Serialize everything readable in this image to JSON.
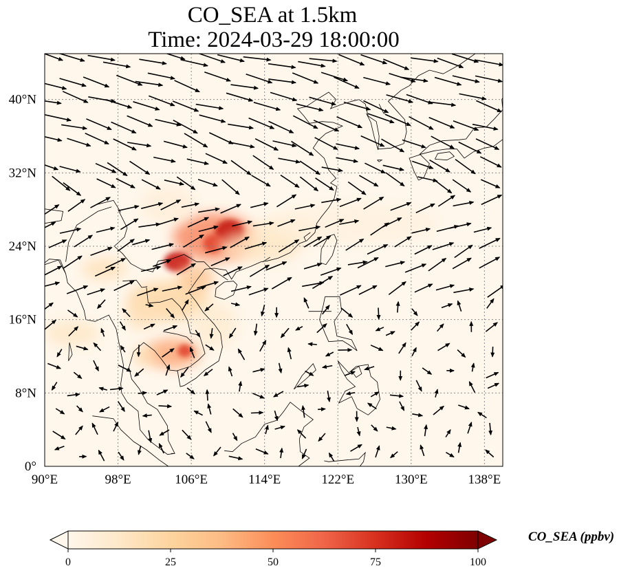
{
  "title": {
    "line1": "CO_SEA at 1.5km",
    "line2": "Time: 2024-03-29 18:00:00"
  },
  "map": {
    "variable": "CO_SEA",
    "level": "1.5km",
    "time": "2024-03-29 18:00:00",
    "lon_range": [
      90,
      140
    ],
    "lat_range": [
      0,
      45
    ],
    "lon_ticks": [
      {
        "value": 90,
        "label": "90°E"
      },
      {
        "value": 98,
        "label": "98°E"
      },
      {
        "value": 106,
        "label": "106°E"
      },
      {
        "value": 114,
        "label": "114°E"
      },
      {
        "value": 122,
        "label": "122°E"
      },
      {
        "value": 130,
        "label": "130°E"
      },
      {
        "value": 138,
        "label": "138°E"
      }
    ],
    "lat_ticks": [
      {
        "value": 0,
        "label": "0°"
      },
      {
        "value": 8,
        "label": "8°N"
      },
      {
        "value": 16,
        "label": "16°N"
      },
      {
        "value": 24,
        "label": "24°N"
      },
      {
        "value": 32,
        "label": "32°N"
      },
      {
        "value": 40,
        "label": "40°N"
      }
    ],
    "gridlines": "dotted",
    "plumes": [
      {
        "lon": 108.5,
        "lat": 25.0,
        "rlon": 4.5,
        "rlat": 2.6,
        "value": 55
      },
      {
        "lon": 110.2,
        "lat": 25.5,
        "rlon": 1.6,
        "rlat": 1.4,
        "value": 82
      },
      {
        "lon": 108.5,
        "lat": 24.3,
        "rlon": 1.2,
        "rlat": 1.0,
        "value": 70
      },
      {
        "lon": 104.5,
        "lat": 22.3,
        "rlon": 1.5,
        "rlat": 1.1,
        "value": 80
      },
      {
        "lon": 103.5,
        "lat": 18.0,
        "rlon": 4.5,
        "rlat": 2.2,
        "value": 25
      },
      {
        "lon": 100.5,
        "lat": 16.5,
        "rlon": 1.6,
        "rlat": 1.6,
        "value": 18
      },
      {
        "lon": 104.0,
        "lat": 12.3,
        "rlon": 3.0,
        "rlat": 1.6,
        "value": 45
      },
      {
        "lon": 105.3,
        "lat": 12.6,
        "rlon": 0.8,
        "rlat": 0.7,
        "value": 70
      },
      {
        "lon": 101.0,
        "lat": 12.0,
        "rlon": 1.4,
        "rlat": 1.0,
        "value": 22
      },
      {
        "lon": 106.5,
        "lat": 20.5,
        "rlon": 2.0,
        "rlat": 1.5,
        "value": 35
      },
      {
        "lon": 113.5,
        "lat": 24.0,
        "rlon": 4.5,
        "rlat": 1.8,
        "value": 15
      },
      {
        "lon": 116.5,
        "lat": 25.8,
        "rlon": 4.0,
        "rlat": 1.4,
        "value": 12
      },
      {
        "lon": 96.5,
        "lat": 21.5,
        "rlon": 2.5,
        "rlat": 1.2,
        "value": 18
      },
      {
        "lon": 93.0,
        "lat": 14.5,
        "rlon": 3.0,
        "rlat": 1.4,
        "value": 14
      },
      {
        "lon": 103.5,
        "lat": 28.5,
        "rlon": 3.0,
        "rlat": 2.0,
        "value": 8
      },
      {
        "lon": 124.0,
        "lat": 26.5,
        "rlon": 9.0,
        "rlat": 2.2,
        "value": 5
      },
      {
        "lon": 108.5,
        "lat": 15.5,
        "rlon": 2.5,
        "rlat": 2.5,
        "value": 10
      }
    ],
    "wind_arrows": "dense quiver field of black arrows (1.5km winds); mostly westerly-to-northwesterly over mid-latitudes, southwesterly/variable over the tropics"
  },
  "colorbar": {
    "label": "CO_SEA (ppbv)",
    "min": 0,
    "max": 100,
    "extend": "both",
    "colormap": "OrRd",
    "colors": [
      "#fff7ec",
      "#fee8c8",
      "#fdd49e",
      "#fdbb84",
      "#fc8d59",
      "#ef6548",
      "#d7301f",
      "#b30000",
      "#7f0000"
    ],
    "ticks": [
      {
        "value": 0,
        "label": "0"
      },
      {
        "value": 25,
        "label": "25"
      },
      {
        "value": 50,
        "label": "50"
      },
      {
        "value": 75,
        "label": "75"
      },
      {
        "value": 100,
        "label": "100"
      }
    ]
  }
}
